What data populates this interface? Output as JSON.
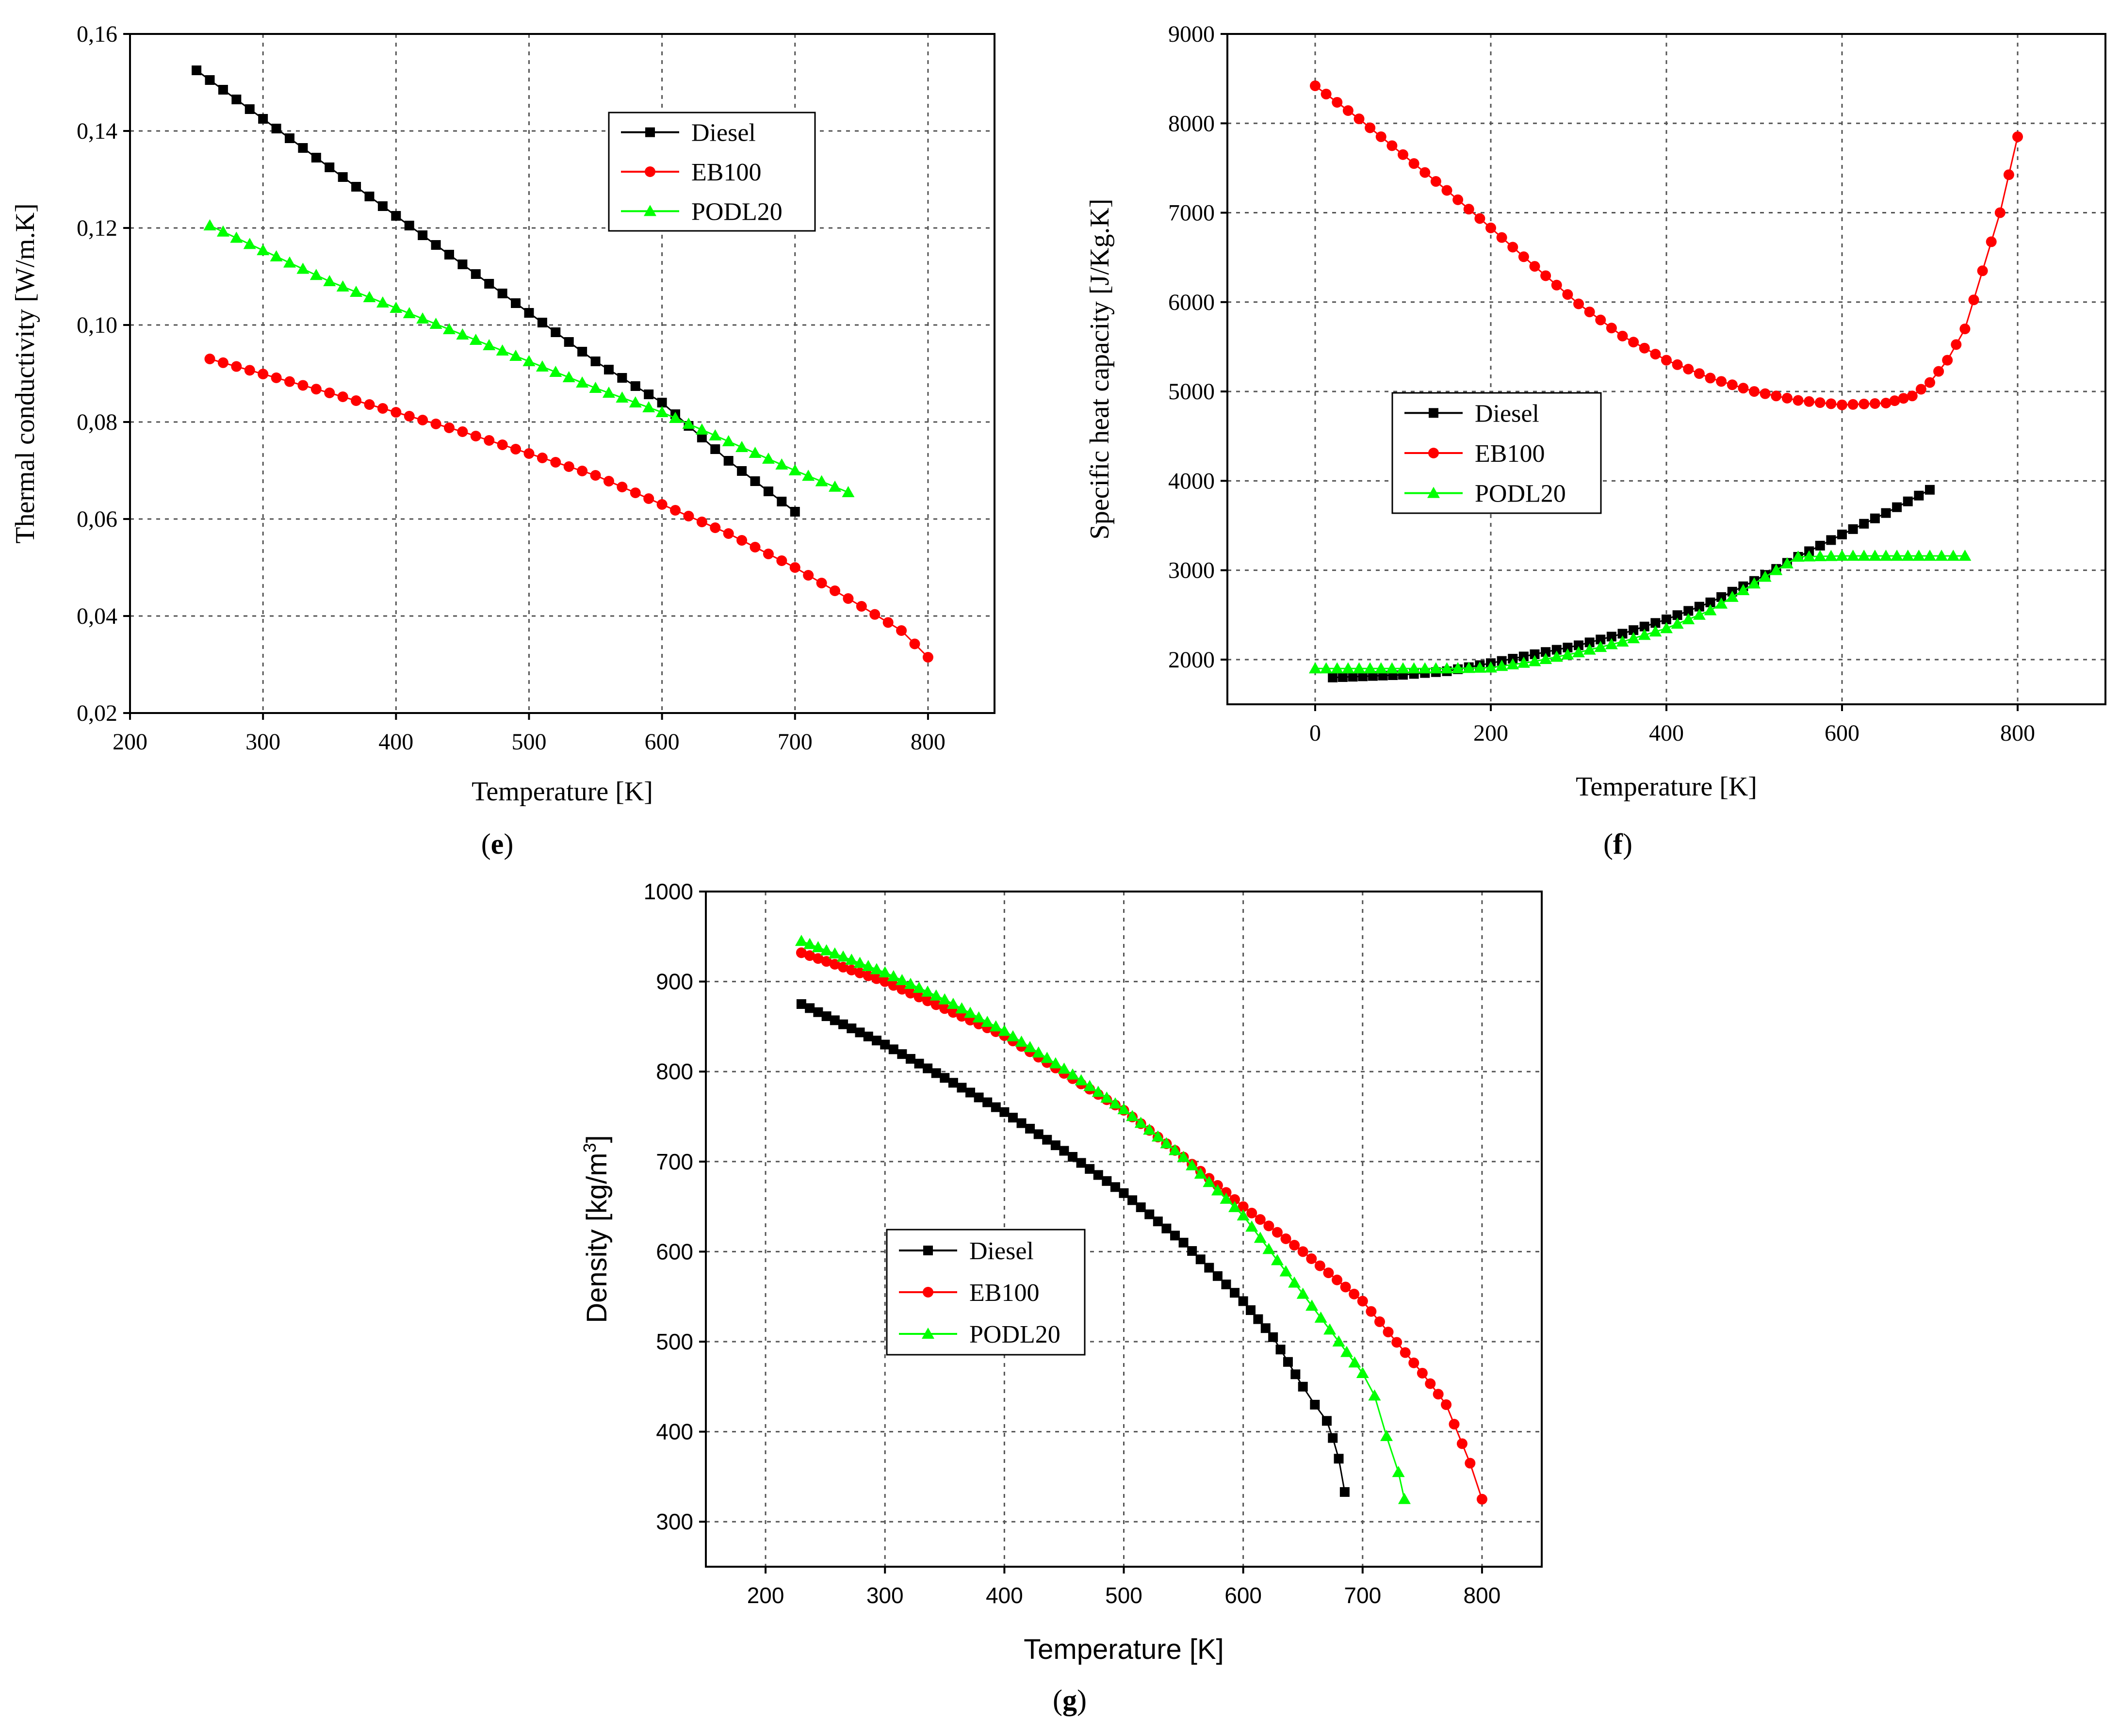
{
  "chart_data": [
    {
      "id": "e",
      "type": "scatter",
      "caption_letter": "e",
      "xlabel": "Temperature [K]",
      "ylabel": "Thermal conductivity [W/m.K]",
      "xlim": [
        200,
        850
      ],
      "ylim": [
        0.02,
        0.16
      ],
      "xticks": [
        200,
        300,
        400,
        500,
        600,
        700,
        800
      ],
      "xtick_labels": [
        "200",
        "300",
        "400",
        "500",
        "600",
        "700",
        "800"
      ],
      "yticks": [
        0.02,
        0.04,
        0.06,
        0.08,
        0.1,
        0.12,
        0.14,
        0.16
      ],
      "ytick_labels": [
        "0,02",
        "0,04",
        "0,06",
        "0,08",
        "0,10",
        "0,12",
        "0,14",
        "0,16"
      ],
      "legend_position": "top-right",
      "series": [
        {
          "name": "Diesel",
          "color": "#000000",
          "marker": "square",
          "x": [
            250,
            350,
            450,
            500,
            550,
            600,
            650,
            700
          ],
          "y": [
            0.1525,
            0.1325,
            0.1125,
            0.1025,
            0.0925,
            0.084,
            0.072,
            0.0615
          ]
        },
        {
          "name": "EB100",
          "color": "#ff0000",
          "marker": "circle",
          "x": [
            260,
            350,
            450,
            550,
            600,
            650,
            700,
            750,
            780,
            800
          ],
          "y": [
            0.093,
            0.086,
            0.078,
            0.069,
            0.063,
            0.057,
            0.05,
            0.042,
            0.037,
            0.0315
          ]
        },
        {
          "name": "PODL20",
          "color": "#00ff00",
          "marker": "triangle",
          "x": [
            260,
            350,
            450,
            550,
            600,
            650,
            700,
            740
          ],
          "y": [
            0.1205,
            0.109,
            0.098,
            0.087,
            0.082,
            0.076,
            0.07,
            0.0655
          ]
        }
      ]
    },
    {
      "id": "f",
      "type": "scatter",
      "caption_letter": "f",
      "xlabel": "Temperature [K]",
      "ylabel": "Specific heat capacity [J/Kg.K]",
      "xlim": [
        -100,
        900
      ],
      "ylim": [
        1500,
        9000
      ],
      "xticks": [
        0,
        200,
        400,
        600,
        800
      ],
      "xtick_labels": [
        "0",
        "200",
        "400",
        "600",
        "800"
      ],
      "yticks": [
        2000,
        3000,
        4000,
        5000,
        6000,
        7000,
        8000,
        9000
      ],
      "ytick_labels": [
        "2000",
        "3000",
        "4000",
        "5000",
        "6000",
        "7000",
        "8000",
        "9000"
      ],
      "legend_position": "center-left",
      "series": [
        {
          "name": "Diesel",
          "color": "#000000",
          "marker": "square",
          "x": [
            20,
            100,
            150,
            200,
            250,
            300,
            350,
            400,
            450,
            500,
            550,
            600,
            650,
            700
          ],
          "y": [
            1800,
            1830,
            1870,
            1960,
            2060,
            2160,
            2290,
            2450,
            2640,
            2880,
            3150,
            3400,
            3640,
            3900
          ]
        },
        {
          "name": "EB100",
          "color": "#ff0000",
          "marker": "circle",
          "x": [
            0,
            50,
            100,
            150,
            200,
            250,
            300,
            350,
            400,
            450,
            500,
            550,
            600,
            650,
            680,
            700,
            720,
            740,
            760,
            780,
            800
          ],
          "y": [
            8420,
            8050,
            7650,
            7250,
            6830,
            6400,
            5980,
            5620,
            5350,
            5150,
            5000,
            4900,
            4850,
            4870,
            4950,
            5100,
            5350,
            5700,
            6350,
            7000,
            7850
          ]
        },
        {
          "name": "PODL20",
          "color": "#00ff00",
          "marker": "triangle",
          "x": [
            0,
            50,
            100,
            150,
            200,
            250,
            300,
            350,
            400,
            450,
            500,
            550,
            600,
            650,
            700,
            740
          ],
          "y": [
            1900,
            1900,
            1900,
            1900,
            1910,
            1980,
            2080,
            2200,
            2350,
            2550,
            2850,
            3150,
            3160,
            3160,
            3160,
            3160
          ]
        }
      ]
    },
    {
      "id": "g",
      "type": "scatter",
      "caption_letter": "g",
      "xlabel": "Temperature [K]",
      "ylabel": "Density [kg/m",
      "ylabel_sup": "3",
      "ylabel_end": "]",
      "xlim": [
        150,
        850
      ],
      "ylim": [
        250,
        1000
      ],
      "xticks": [
        200,
        300,
        400,
        500,
        600,
        700,
        800
      ],
      "xtick_labels": [
        "200",
        "300",
        "400",
        "500",
        "600",
        "700",
        "800"
      ],
      "yticks": [
        300,
        400,
        500,
        600,
        700,
        800,
        900,
        1000
      ],
      "ytick_labels": [
        "300",
        "400",
        "500",
        "600",
        "700",
        "800",
        "900",
        "1000"
      ],
      "legend_position": "center-left",
      "series": [
        {
          "name": "Diesel",
          "color": "#000000",
          "marker": "square",
          "x": [
            230,
            300,
            350,
            400,
            450,
            500,
            550,
            600,
            625,
            650,
            660,
            670,
            675,
            680,
            685
          ],
          "y": [
            875,
            830,
            793,
            755,
            712,
            665,
            610,
            545,
            505,
            450,
            430,
            412,
            393,
            370,
            333
          ]
        },
        {
          "name": "EB100",
          "color": "#ff0000",
          "marker": "circle",
          "x": [
            230,
            300,
            350,
            400,
            450,
            500,
            550,
            600,
            650,
            700,
            750,
            770,
            790,
            800
          ],
          "y": [
            932,
            900,
            870,
            840,
            798,
            757,
            705,
            650,
            600,
            545,
            465,
            430,
            365,
            325
          ]
        },
        {
          "name": "PODL20",
          "color": "#00ff00",
          "marker": "triangle",
          "x": [
            230,
            300,
            350,
            400,
            450,
            500,
            550,
            600,
            650,
            680,
            700,
            710,
            720,
            730,
            735
          ],
          "y": [
            945,
            910,
            880,
            845,
            803,
            758,
            705,
            640,
            553,
            500,
            465,
            440,
            395,
            355,
            325
          ]
        }
      ]
    }
  ]
}
